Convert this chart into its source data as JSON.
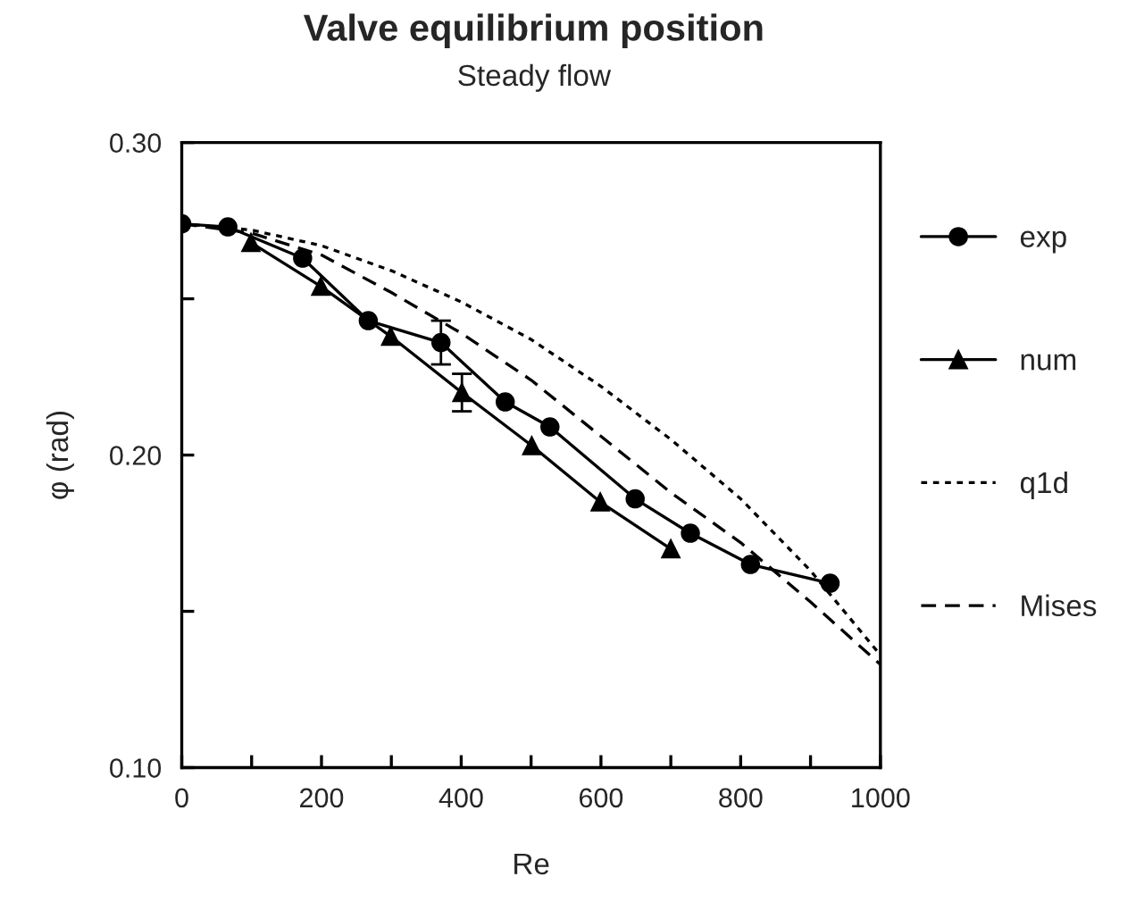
{
  "chart_data": {
    "type": "line",
    "title": "Valve equilibrium position",
    "subtitle": "Steady flow",
    "xlabel": "Re",
    "ylabel": "φ (rad)",
    "xlim": [
      0,
      1000
    ],
    "ylim": [
      0.1,
      0.3
    ],
    "xticks": [
      0,
      {
        "value": 100,
        "label": null
      },
      200,
      {
        "value": 300,
        "label": null
      },
      400,
      {
        "value": 500,
        "label": null
      },
      600,
      {
        "value": 700,
        "label": null
      },
      800,
      {
        "value": 900,
        "label": null
      },
      1000
    ],
    "yticks": [
      {
        "value": 0.1,
        "label": "0.10"
      },
      {
        "value": 0.15,
        "label": null
      },
      {
        "value": 0.2,
        "label": "0.20"
      },
      {
        "value": 0.25,
        "label": null
      },
      {
        "value": 0.3,
        "label": "0.30"
      }
    ],
    "grid": false,
    "legend": "right",
    "series": [
      {
        "name": "exp",
        "color": "#000000",
        "marker": "circle",
        "line_style": "solid",
        "x": [
          0,
          66,
          173,
          267,
          371,
          463,
          527,
          649,
          728,
          814,
          928
        ],
        "values": [
          0.274,
          0.273,
          0.263,
          0.243,
          0.236,
          0.217,
          0.209,
          0.186,
          0.175,
          0.165,
          0.159
        ],
        "errors": [
          null,
          null,
          null,
          null,
          [
            0.229,
            0.243
          ],
          null,
          null,
          null,
          null,
          null,
          null
        ]
      },
      {
        "name": "num",
        "color": "#000000",
        "marker": "triangle",
        "line_style": "solid",
        "x": [
          99,
          199,
          299,
          401,
          501,
          599,
          700
        ],
        "values": [
          0.268,
          0.254,
          0.238,
          0.22,
          0.203,
          0.185,
          0.17
        ],
        "errors": [
          null,
          null,
          null,
          [
            0.214,
            0.226
          ],
          null,
          null,
          null
        ]
      },
      {
        "name": "q1d",
        "color": "#000000",
        "marker": "none",
        "line_style": "dotted",
        "x": [
          0,
          100,
          200,
          300,
          400,
          500,
          600,
          700,
          800,
          900,
          1000
        ],
        "values": [
          0.274,
          0.272,
          0.267,
          0.259,
          0.249,
          0.237,
          0.222,
          0.205,
          0.186,
          0.163,
          0.136
        ]
      },
      {
        "name": "Mises",
        "color": "#000000",
        "marker": "none",
        "line_style": "dashed",
        "x": [
          0,
          100,
          200,
          300,
          400,
          500,
          600,
          700,
          800,
          900,
          1000
        ],
        "values": [
          0.274,
          0.271,
          0.264,
          0.252,
          0.239,
          0.224,
          0.206,
          0.188,
          0.172,
          0.153,
          0.133
        ]
      }
    ]
  }
}
